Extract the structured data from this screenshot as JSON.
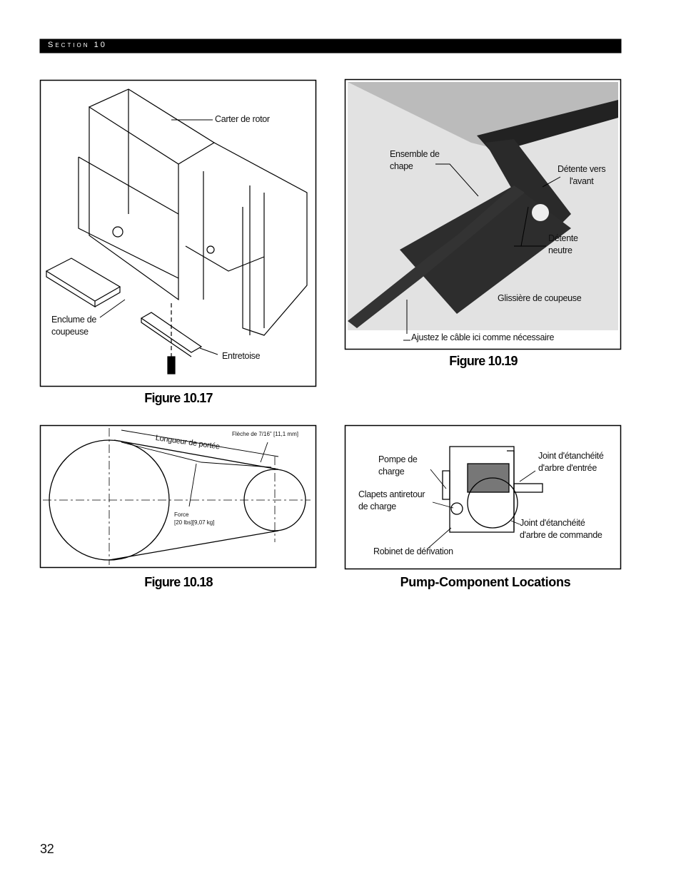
{
  "header": {
    "section": "Section 10"
  },
  "figures": [
    {
      "caption": "Figure 10.17",
      "labels": [
        "Carter de rotor",
        "Enclume de\ncoupeuse",
        "Entretoise"
      ]
    },
    {
      "caption": "Figure 10.19",
      "labels": [
        "Ensemble de\nchape",
        "Détente vers\nl'avant",
        "Détente\nneutre",
        "Glissière de coupeuse",
        "Ajustez le câble ici comme nécessaire"
      ]
    },
    {
      "caption": "Figure 10.18",
      "labels": [
        "Longueur de portée",
        "Flèche de 7/16\" [11,1 mm]",
        "Force\n[20 lbs][9,07 kg]"
      ]
    },
    {
      "caption": "Pump-Component Locations",
      "labels": [
        "Pompe de\ncharge",
        "Clapets antiretour\nde charge",
        "Robinet de dérivation",
        "Joint d'étanchéité\nd'arbre d'entrée",
        "Joint d'étanchéité\nd'arbre de commande"
      ]
    }
  ],
  "page_number": "32"
}
